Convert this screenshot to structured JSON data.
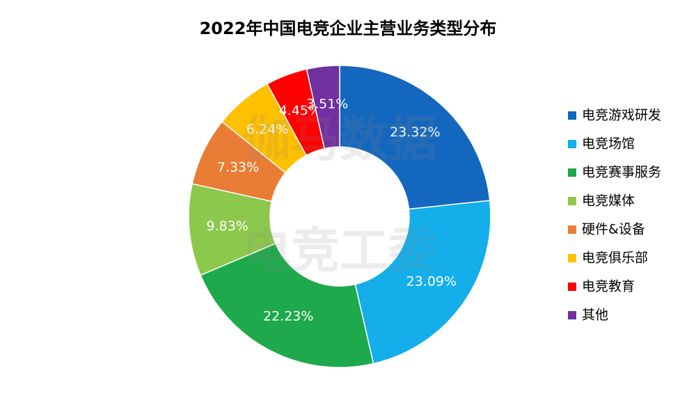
{
  "chart_data": {
    "type": "donut",
    "title": "2022年中国电竞企业主营业务类型分布",
    "categories": [
      "电竞游戏研发",
      "电竞场馆",
      "电竞赛事服务",
      "电竞媒体",
      "硬件&设备",
      "电竞俱乐部",
      "电竞教育",
      "其他"
    ],
    "values": [
      23.32,
      23.09,
      22.23,
      9.83,
      7.33,
      6.24,
      4.45,
      3.51
    ],
    "value_labels": [
      "23.32%",
      "23.09%",
      "22.23%",
      "9.83%",
      "7.33%",
      "6.24%",
      "4.45%",
      "3.51%"
    ],
    "colors": [
      "#1467be",
      "#14aeea",
      "#1ea94c",
      "#8cc84b",
      "#ea7d35",
      "#ffc000",
      "#ff0000",
      "#7030a0"
    ],
    "watermark": [
      "伽马数据",
      "电竞工委"
    ]
  }
}
